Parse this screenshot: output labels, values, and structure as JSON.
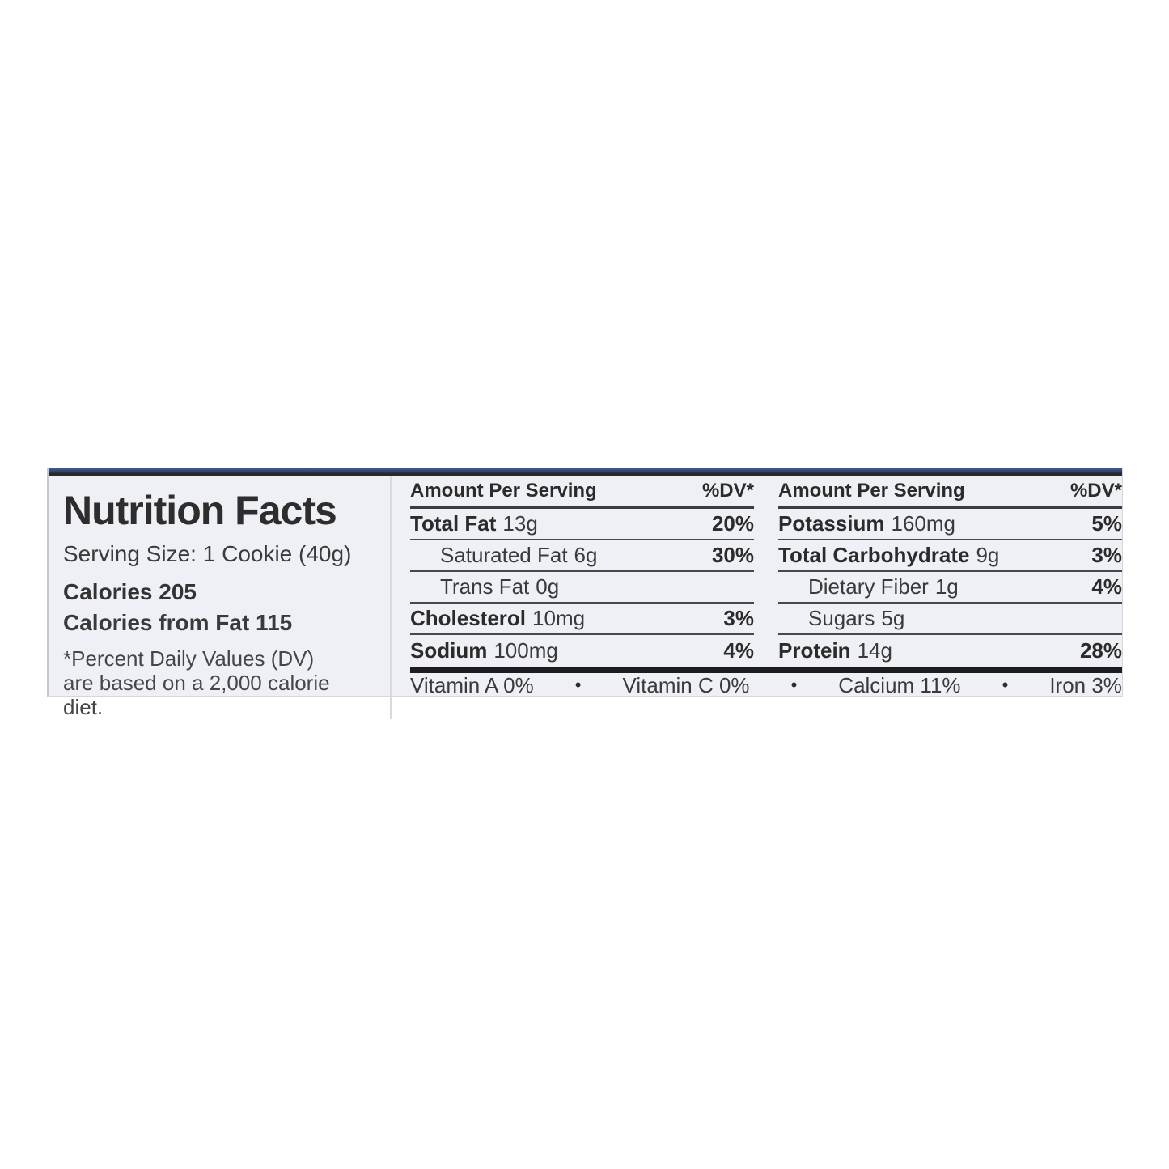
{
  "label": {
    "title": "Nutrition Facts",
    "serving_size": "Serving Size: 1 Cookie (40g)",
    "calories": "Calories 205",
    "calories_from_fat": "Calories from Fat 115",
    "footnote": "*Percent Daily Values (DV) are based on a 2,000 calorie diet.",
    "bullet": "•",
    "columns": [
      {
        "header": "Amount Per Serving",
        "dv_header": "%DV*",
        "rows": [
          {
            "name": "Total Fat",
            "amount": "13g",
            "dv": "20%"
          },
          {
            "name": "Saturated Fat",
            "amount": "6g",
            "dv": "30%"
          },
          {
            "name": "Trans Fat",
            "amount": "0g",
            "dv": ""
          },
          {
            "name": "Cholesterol",
            "amount": "10mg",
            "dv": "3%"
          },
          {
            "name": "Sodium",
            "amount": "100mg",
            "dv": "4%"
          }
        ]
      },
      {
        "header": "Amount Per Serving",
        "dv_header": "%DV*",
        "rows": [
          {
            "name": "Potassium",
            "amount": "160mg",
            "dv": "5%"
          },
          {
            "name": "Total Carbohydrate",
            "amount": "9g",
            "dv": "3%"
          },
          {
            "name": "Dietary Fiber",
            "amount": "1g",
            "dv": "4%"
          },
          {
            "name": "Sugars",
            "amount": "5g",
            "dv": ""
          },
          {
            "name": "Protein",
            "amount": "14g",
            "dv": "28%"
          }
        ]
      }
    ],
    "micronutrients": [
      "Vitamin A 0%",
      "Vitamin C 0%",
      "Calcium 11%",
      "Iron 3%"
    ],
    "colors": {
      "label_background": "#eef0f5",
      "text": "#2b2b2b",
      "rule": "#47474c",
      "thick_bar": "#1d1d20",
      "top_strip_blue": "#3f63a7",
      "top_strip_dark": "#26262c"
    }
  }
}
